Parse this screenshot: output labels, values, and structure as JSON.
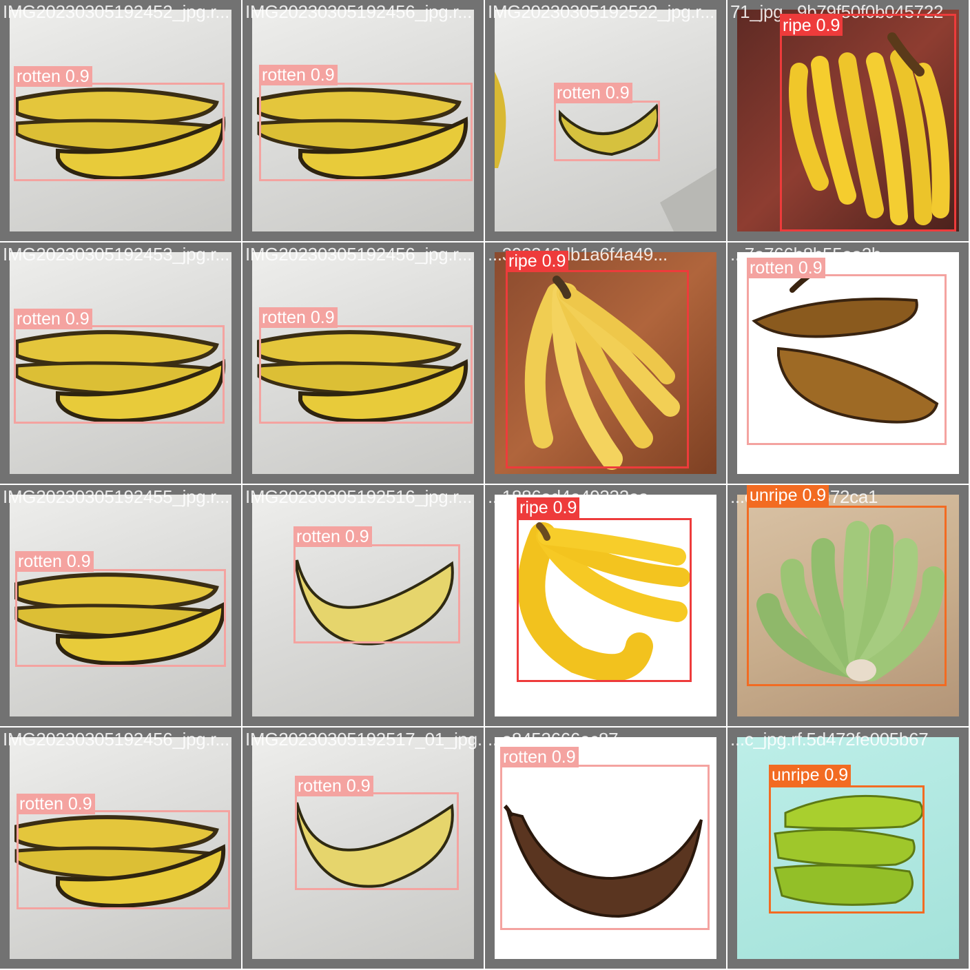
{
  "colors": {
    "rotten": "#f4a3a0",
    "ripe": "#ee3b3b",
    "unripe": "#f26b22"
  },
  "tiles": [
    {
      "filename": "IMG20230305192452_jpg.r...",
      "label": "rotten 0.9",
      "class": "rotten"
    },
    {
      "filename": "IMG20230305192456_jpg.r...",
      "label": "rotten 0.9",
      "class": "rotten"
    },
    {
      "filename": "IMG20230305192522_jpg.r...",
      "label": "rotten 0.9",
      "class": "rotten"
    },
    {
      "filename": "71_jpg...9b79f50f0b045722",
      "label": "ripe 0.9",
      "class": "ripe"
    },
    {
      "filename": "IMG20230305192453_jpg.r...",
      "label": "rotten 0.9",
      "class": "rotten"
    },
    {
      "filename": "IMG20230305192456_jpg.r...",
      "label": "rotten 0.9",
      "class": "rotten"
    },
    {
      "filename": "...393342db1a6f4a49...",
      "label": "ripe 0.9",
      "class": "ripe"
    },
    {
      "filename": "...7a766b8b55ea2b",
      "label": "rotten 0.9",
      "class": "rotten"
    },
    {
      "filename": "IMG20230305192455_jpg.r...",
      "label": "rotten 0.9",
      "class": "rotten"
    },
    {
      "filename": "IMG20230305192516_jpg.r...",
      "label": "rotten 0.9",
      "class": "rotten"
    },
    {
      "filename": "...1886ad4e49332ea...",
      "label": "ripe 0.9",
      "class": "ripe"
    },
    {
      "filename": "...c1149124872ca1",
      "label": "unripe 0.9",
      "class": "unripe"
    },
    {
      "filename": "IMG20230305192456_jpg.r...",
      "label": "rotten 0.9",
      "class": "rotten"
    },
    {
      "filename": "IMG20230305192517_01_jpg...",
      "label": "rotten 0.9",
      "class": "rotten"
    },
    {
      "filename": "...a8452666ec87...",
      "label": "rotten 0.9",
      "class": "rotten"
    },
    {
      "filename": "...c_jpg.rf.5d472fe005b67",
      "label": "unripe 0.9",
      "class": "unripe"
    }
  ]
}
